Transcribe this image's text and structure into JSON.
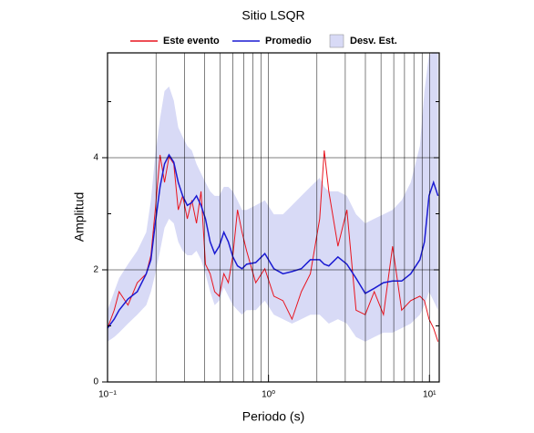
{
  "chart_data": {
    "type": "line",
    "title": "Sitio LSQR",
    "xlabel": "Periodo (s)",
    "ylabel": "Amplitud",
    "xscale": "log",
    "grid": true,
    "xlim": [
      0.1,
      11.5
    ],
    "ylim": [
      0,
      5.87
    ],
    "xticks": [
      {
        "value": 0.1,
        "label": "10⁻¹"
      },
      {
        "value": 1,
        "label": "10⁰"
      },
      {
        "value": 10,
        "label": "10¹"
      }
    ],
    "xminor": [
      0.2,
      0.3,
      0.4,
      0.5,
      0.6,
      0.7,
      0.8,
      0.9,
      2,
      3,
      4,
      5,
      6,
      7,
      8,
      9
    ],
    "yticks": [
      0,
      2,
      4
    ],
    "yminor": [
      1,
      3,
      5
    ],
    "x": [
      0.1,
      0.11,
      0.118,
      0.134,
      0.153,
      0.174,
      0.186,
      0.198,
      0.212,
      0.226,
      0.241,
      0.258,
      0.275,
      0.293,
      0.313,
      0.334,
      0.357,
      0.381,
      0.406,
      0.434,
      0.463,
      0.494,
      0.528,
      0.563,
      0.601,
      0.642,
      0.685,
      0.731,
      0.833,
      0.949,
      1.08,
      1.23,
      1.4,
      1.6,
      1.82,
      2.08,
      2.22,
      2.37,
      2.7,
      3.07,
      3.5,
      3.99,
      4.54,
      5.18,
      5.9,
      6.72,
      7.65,
      8.72,
      9.31,
      9.94,
      10.6,
      11.3
    ],
    "band": {
      "name": "Desv. Est.",
      "color": "#d8daf6",
      "upper": [
        1.28,
        1.61,
        1.85,
        2.1,
        2.34,
        2.67,
        3.24,
        4.05,
        4.7,
        5.19,
        5.27,
        5.02,
        4.54,
        4.37,
        4.21,
        4.13,
        3.89,
        3.72,
        3.56,
        3.4,
        3.32,
        3.32,
        3.48,
        3.48,
        3.4,
        3.24,
        3.07,
        3.07,
        3.15,
        3.24,
        2.99,
        2.99,
        3.15,
        3.32,
        3.48,
        3.64,
        3.48,
        3.4,
        3.4,
        3.32,
        2.99,
        2.83,
        2.91,
        2.99,
        3.07,
        3.24,
        3.56,
        4.21,
        5.19,
        5.84,
        5.87,
        5.87
      ],
      "lower": [
        0.72,
        0.8,
        0.88,
        1.04,
        1.2,
        1.37,
        1.61,
        1.93,
        2.34,
        2.75,
        2.91,
        2.83,
        2.5,
        2.34,
        2.26,
        2.26,
        2.34,
        2.18,
        1.93,
        1.61,
        1.37,
        1.45,
        1.69,
        1.53,
        1.37,
        1.28,
        1.2,
        1.28,
        1.28,
        1.45,
        1.2,
        1.12,
        1.04,
        1.12,
        1.2,
        1.2,
        1.12,
        1.04,
        1.12,
        1.04,
        0.8,
        0.72,
        0.8,
        0.88,
        0.88,
        0.96,
        1.04,
        1.2,
        1.37,
        1.61,
        1.45,
        1.28
      ]
    },
    "series": [
      {
        "name": "Este evento",
        "color": "#e8141e",
        "values": [
          0.96,
          1.28,
          1.61,
          1.37,
          1.77,
          1.93,
          2.26,
          3.07,
          4.05,
          3.56,
          4.02,
          3.89,
          3.07,
          3.32,
          2.91,
          3.24,
          2.83,
          3.4,
          2.1,
          1.93,
          1.61,
          1.53,
          1.93,
          1.77,
          2.26,
          3.07,
          2.67,
          2.34,
          1.77,
          2.02,
          1.53,
          1.45,
          1.12,
          1.61,
          1.93,
          2.91,
          4.13,
          3.4,
          2.42,
          3.07,
          1.28,
          1.2,
          1.61,
          1.2,
          2.42,
          1.28,
          1.45,
          1.53,
          1.45,
          1.12,
          0.96,
          0.72
        ]
      },
      {
        "name": "Promedio",
        "color": "#1a1ad2",
        "values": [
          0.96,
          1.12,
          1.28,
          1.48,
          1.61,
          1.93,
          2.18,
          2.83,
          3.48,
          3.89,
          4.05,
          3.92,
          3.56,
          3.32,
          3.15,
          3.2,
          3.32,
          3.15,
          2.91,
          2.5,
          2.29,
          2.42,
          2.67,
          2.5,
          2.23,
          2.07,
          2.02,
          2.1,
          2.13,
          2.29,
          2.02,
          1.93,
          1.97,
          2.02,
          2.18,
          2.18,
          2.1,
          2.07,
          2.23,
          2.1,
          1.85,
          1.58,
          1.67,
          1.77,
          1.8,
          1.8,
          1.93,
          2.18,
          2.5,
          3.32,
          3.56,
          3.32
        ]
      }
    ]
  }
}
